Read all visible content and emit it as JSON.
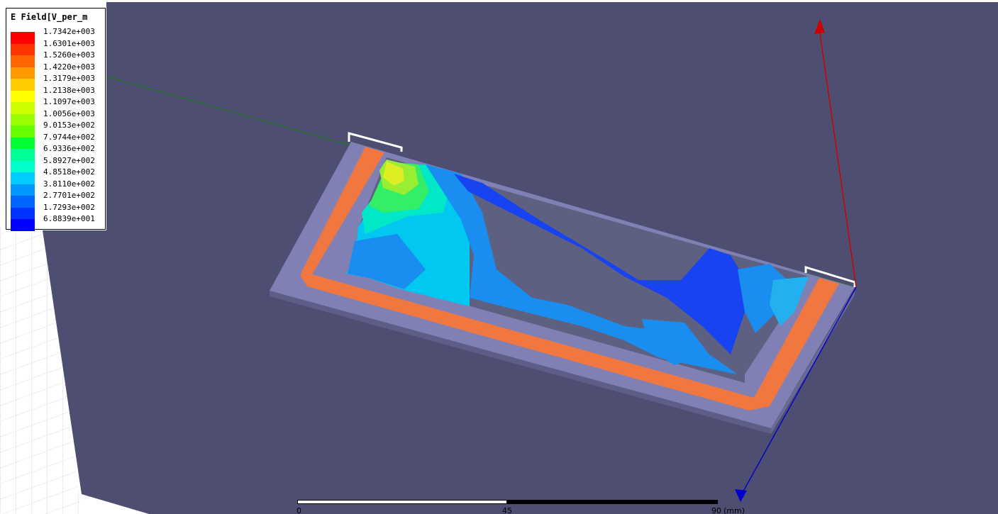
{
  "legend": {
    "title": "E Field[V_per_m",
    "entries": [
      {
        "label": "1.7342e+003",
        "color": "#ff0000"
      },
      {
        "label": "1.6301e+003",
        "color": "#ff3300"
      },
      {
        "label": "1.5260e+003",
        "color": "#ff6600"
      },
      {
        "label": "1.4220e+003",
        "color": "#ff9900"
      },
      {
        "label": "1.3179e+003",
        "color": "#ffcc00"
      },
      {
        "label": "1.2138e+003",
        "color": "#ffff00"
      },
      {
        "label": "1.1097e+003",
        "color": "#ccff00"
      },
      {
        "label": "1.0056e+003",
        "color": "#99ff00"
      },
      {
        "label": "9.0153e+002",
        "color": "#66ff00"
      },
      {
        "label": "7.9744e+002",
        "color": "#00ff33"
      },
      {
        "label": "6.9336e+002",
        "color": "#00ff99"
      },
      {
        "label": "5.8927e+002",
        "color": "#00ffcc"
      },
      {
        "label": "4.8518e+002",
        "color": "#00ccff"
      },
      {
        "label": "3.8110e+002",
        "color": "#0099ff"
      },
      {
        "label": "2.7701e+002",
        "color": "#0066ff"
      },
      {
        "label": "1.7293e+002",
        "color": "#0033ff"
      },
      {
        "label": "6.8839e+001",
        "color": "#0000ff"
      }
    ]
  },
  "scale_bar": {
    "tick_start": "0",
    "tick_mid": "45",
    "tick_end": "90",
    "unit": "(mm)"
  },
  "colors": {
    "background_plane": "#4e4e72",
    "substrate": "#8080b4",
    "trace": "#f07840",
    "cavity": "#5d6080",
    "axis_x": "#1f7a1f",
    "axis_y": "#cc0000",
    "axis_z": "#0000cc"
  }
}
